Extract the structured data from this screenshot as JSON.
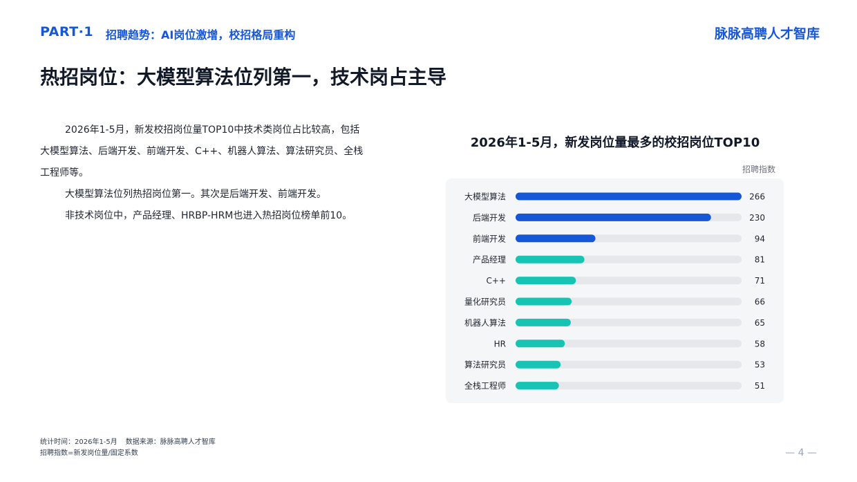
{
  "header": {
    "part": "PART·1",
    "subtitle": "招聘趋势：AI岗位激增，校招格局重构",
    "brand": "脉脉高聘人才智库"
  },
  "page_title": "热招岗位：大模型算法位列第一，技术岗占主导",
  "body": {
    "paragraphs": [
      "2026年1-5月，新发校招岗位量TOP10中技术类岗位占比较高，包括大模型算法、后端开发、前端开发、C++、机器人算法、算法研究员、全栈工程师等。",
      "大模型算法位列热招岗位第一。其次是后端开发、前端开发。",
      "非技术岗位中，产品经理、HRBP-HRM也进入热招岗位榜单前10。"
    ]
  },
  "chart": {
    "title": "2026年1-5月，新发岗位量最多的校招岗位TOP10",
    "unit_label": "招聘指数"
  },
  "chart_data": {
    "type": "bar",
    "orientation": "horizontal",
    "categories": [
      "大模型算法",
      "后端开发",
      "前端开发",
      "产品经理",
      "C++",
      "量化研究员",
      "机器人算法",
      "HR",
      "算法研究员",
      "全栈工程师"
    ],
    "values": [
      266,
      230,
      94,
      81,
      71,
      66,
      65,
      58,
      53,
      51
    ],
    "xlim": [
      0,
      266
    ],
    "colors": [
      "#1557d6",
      "#1557d6",
      "#1557d6",
      "#17c3b2",
      "#17c3b2",
      "#17c3b2",
      "#17c3b2",
      "#17c3b2",
      "#17c3b2",
      "#17c3b2"
    ],
    "track_color": "#e5e7eb",
    "grid": false,
    "legend": "none"
  },
  "footer": {
    "stat_time": "统计时间：2026年1-5月",
    "source": "数据来源：脉脉高聘人才智库",
    "note": "招聘指数=新发岗位量/固定系数",
    "page_number": "— 4 —"
  }
}
